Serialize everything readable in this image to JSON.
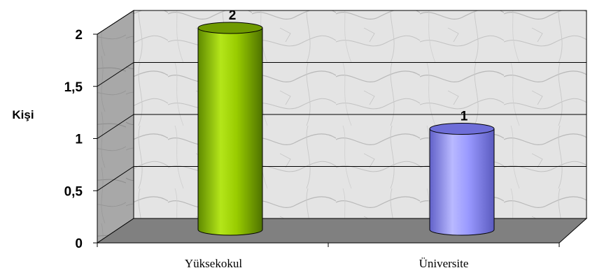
{
  "chart_data": {
    "type": "bar",
    "categories": [
      "Yüksekokul",
      "Üniversite"
    ],
    "values": [
      2,
      1
    ],
    "data_labels": [
      "2",
      "1"
    ],
    "ylabel": "Kişi",
    "xlabel": "",
    "ylim": [
      0,
      2
    ],
    "yticks": [
      "0",
      "0,5",
      "1",
      "1,5",
      "2"
    ],
    "grid": true,
    "bar_shape": "cylinder",
    "colors": [
      "#99CC00",
      "#9999FF"
    ],
    "wall_color": "#D9D9D9",
    "floor_color": "#808080"
  }
}
